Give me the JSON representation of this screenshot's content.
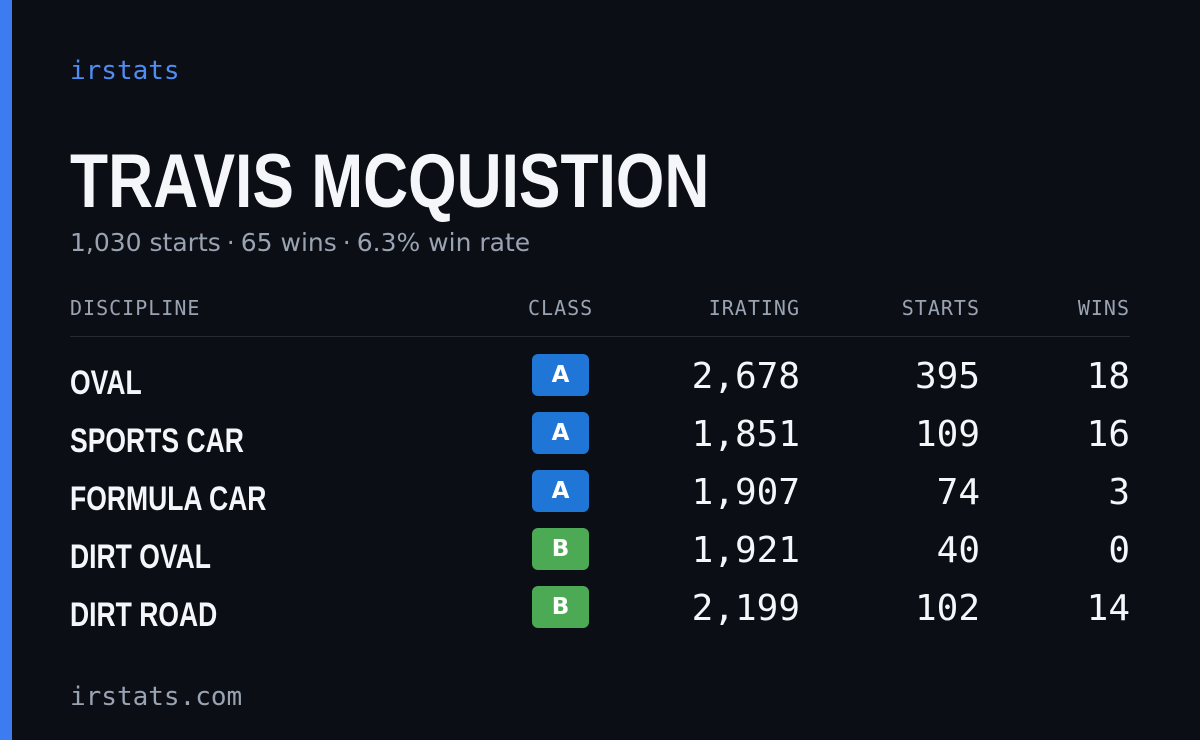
{
  "brand": "irstats",
  "driver": {
    "name": "TRAVIS MCQUISTION",
    "starts_text": "1,030 starts",
    "wins_text": "65 wins",
    "win_rate_text": "6.3% win rate",
    "separator": "·"
  },
  "table": {
    "headers": {
      "discipline": "DISCIPLINE",
      "class": "CLASS",
      "irating": "IRATING",
      "starts": "STARTS",
      "wins": "WINS"
    },
    "rows": [
      {
        "discipline": "OVAL",
        "class": "A",
        "irating": "2,678",
        "starts": "395",
        "wins": "18"
      },
      {
        "discipline": "SPORTS CAR",
        "class": "A",
        "irating": "1,851",
        "starts": "109",
        "wins": "16"
      },
      {
        "discipline": "FORMULA CAR",
        "class": "A",
        "irating": "1,907",
        "starts": "74",
        "wins": "3"
      },
      {
        "discipline": "DIRT OVAL",
        "class": "B",
        "irating": "1,921",
        "starts": "40",
        "wins": "0"
      },
      {
        "discipline": "DIRT ROAD",
        "class": "B",
        "irating": "2,199",
        "starts": "102",
        "wins": "14"
      }
    ]
  },
  "footer": "irstats.com",
  "colors": {
    "background": "#0b0e15",
    "accent": "#3d7bf0",
    "class_a": "#1f76d6",
    "class_b": "#4caa55"
  }
}
